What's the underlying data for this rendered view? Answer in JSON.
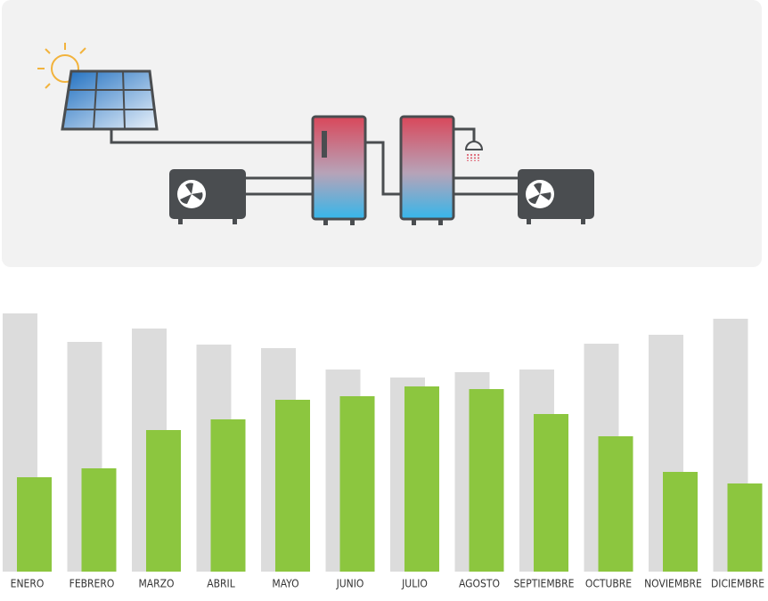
{
  "chart_data": {
    "type": "bar",
    "categories": [
      "ENERO",
      "FEBRERO",
      "MARZO",
      "ABRIL",
      "MAYO",
      "JUNIO",
      "JULIO",
      "AGOSTO",
      "SEPTIEMBRE",
      "OCTUBRE",
      "NOVIEMBRE",
      "DICIEMBRE"
    ],
    "series": [
      {
        "color": "#dcdcdc",
        "values": [
          290,
          258,
          273,
          255,
          251,
          227,
          218,
          224,
          227,
          256,
          266,
          284
        ]
      },
      {
        "color": "#8cc63f",
        "values": [
          106,
          116,
          159,
          171,
          193,
          197,
          208,
          205,
          177,
          152,
          112,
          99
        ]
      }
    ],
    "ylim": [
      0,
      290
    ]
  }
}
